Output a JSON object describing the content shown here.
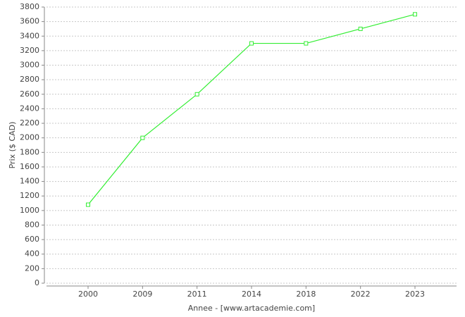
{
  "chart_data": {
    "type": "line",
    "x_label": "Annee - [www.artacademie.com]",
    "y_label": "Prix ($ CAD)",
    "categories": [
      "2000",
      "2009",
      "2011",
      "2014",
      "2018",
      "2022",
      "2023"
    ],
    "series": [
      {
        "name": "Prix",
        "color": "#33ee33",
        "values": [
          1080,
          2000,
          2600,
          3300,
          3300,
          3500,
          3700
        ]
      }
    ],
    "ylim": [
      0,
      3800
    ],
    "yticks": [
      0,
      200,
      400,
      600,
      800,
      1000,
      1200,
      1400,
      1600,
      1800,
      2000,
      2200,
      2400,
      2600,
      2800,
      3000,
      3200,
      3400,
      3600,
      3800
    ],
    "grid": true
  }
}
